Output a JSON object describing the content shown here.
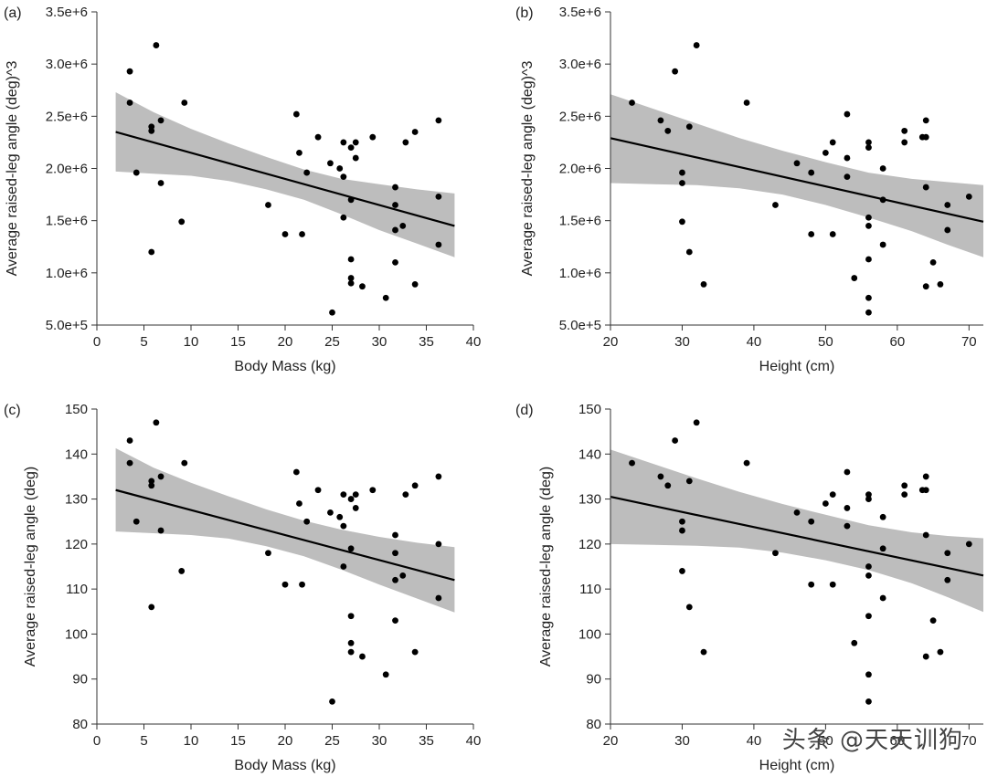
{
  "watermark": "头条 @天天训狗",
  "chart_data": [
    {
      "type": "scatter",
      "panel_label": "(a)",
      "xlabel": "Body Mass (kg)",
      "ylabel": "Average raised-leg angle (deg)^3",
      "xlim": [
        0,
        40
      ],
      "ylim": [
        500000,
        3500000
      ],
      "xticks": [
        0,
        5,
        10,
        15,
        20,
        25,
        30,
        35,
        40
      ],
      "xtick_labels": [
        "0",
        "5",
        "10",
        "15",
        "20",
        "25",
        "30",
        "35",
        "40"
      ],
      "yticks": [
        500000,
        1000000,
        1500000,
        2000000,
        2500000,
        3000000,
        3500000
      ],
      "ytick_labels": [
        "5.0e+5",
        "1.0e+6",
        "1.5e+6",
        "2.0e+6",
        "2.5e+6",
        "3.0e+6",
        "3.5e+6"
      ],
      "points": [
        [
          3.5,
          2930000
        ],
        [
          3.5,
          2630000
        ],
        [
          4.2,
          1960000
        ],
        [
          5.8,
          2400000
        ],
        [
          5.8,
          2360000
        ],
        [
          5.8,
          1200000
        ],
        [
          6.3,
          3180000
        ],
        [
          6.8,
          2460000
        ],
        [
          6.8,
          1860000
        ],
        [
          9,
          1490000
        ],
        [
          9.3,
          2630000
        ],
        [
          18.2,
          1650000
        ],
        [
          20,
          1370000
        ],
        [
          21.2,
          2520000
        ],
        [
          21.5,
          2150000
        ],
        [
          21.8,
          1370000
        ],
        [
          22.3,
          1960000
        ],
        [
          23.5,
          2300000
        ],
        [
          24.8,
          2050000
        ],
        [
          25,
          620000
        ],
        [
          25.8,
          2000000
        ],
        [
          26.2,
          2250000
        ],
        [
          26.2,
          1920000
        ],
        [
          26.2,
          1530000
        ],
        [
          27,
          2200000
        ],
        [
          27,
          1700000
        ],
        [
          27,
          1130000
        ],
        [
          27,
          950000
        ],
        [
          27,
          900000
        ],
        [
          27.5,
          2250000
        ],
        [
          27.5,
          2100000
        ],
        [
          28.2,
          870000
        ],
        [
          29.3,
          2300000
        ],
        [
          30.7,
          760000
        ],
        [
          31.7,
          1820000
        ],
        [
          31.7,
          1650000
        ],
        [
          31.7,
          1410000
        ],
        [
          31.7,
          1100000
        ],
        [
          32.5,
          1450000
        ],
        [
          32.8,
          2250000
        ],
        [
          33.8,
          2350000
        ],
        [
          33.8,
          890000
        ],
        [
          36.3,
          2460000
        ],
        [
          36.3,
          1730000
        ],
        [
          36.3,
          1270000
        ]
      ],
      "fit_line": {
        "x": [
          2,
          38
        ],
        "y": [
          2350000,
          1450000
        ]
      },
      "confidence_band": {
        "x": [
          2,
          6,
          10,
          14,
          18,
          22,
          26,
          30,
          34,
          38
        ],
        "upper": [
          2730000,
          2540000,
          2380000,
          2240000,
          2110000,
          1990000,
          1900000,
          1850000,
          1800000,
          1760000
        ],
        "lower": [
          1970000,
          1950000,
          1930000,
          1880000,
          1800000,
          1700000,
          1560000,
          1410000,
          1280000,
          1150000
        ]
      }
    },
    {
      "type": "scatter",
      "panel_label": "(b)",
      "xlabel": "Height (cm)",
      "ylabel": "Average raised-leg angle (deg)^3",
      "xlim": [
        20,
        72
      ],
      "ylim": [
        500000,
        3500000
      ],
      "xticks": [
        20,
        30,
        40,
        50,
        60,
        70
      ],
      "xtick_labels": [
        "20",
        "30",
        "40",
        "50",
        "60",
        "70"
      ],
      "yticks": [
        500000,
        1000000,
        1500000,
        2000000,
        2500000,
        3000000,
        3500000
      ],
      "ytick_labels": [
        "5.0e+5",
        "1.0e+6",
        "1.5e+6",
        "2.0e+6",
        "2.5e+6",
        "3.0e+6",
        "3.5e+6"
      ],
      "points": [
        [
          23,
          2630000
        ],
        [
          27,
          2460000
        ],
        [
          28,
          2360000
        ],
        [
          29,
          2930000
        ],
        [
          30,
          1960000
        ],
        [
          30,
          1860000
        ],
        [
          30,
          1490000
        ],
        [
          31,
          2400000
        ],
        [
          31,
          1200000
        ],
        [
          32,
          3180000
        ],
        [
          33,
          890000
        ],
        [
          39,
          2630000
        ],
        [
          43,
          1650000
        ],
        [
          46,
          2050000
        ],
        [
          48,
          1960000
        ],
        [
          48,
          1370000
        ],
        [
          50,
          2150000
        ],
        [
          51,
          2250000
        ],
        [
          51,
          1370000
        ],
        [
          53,
          2520000
        ],
        [
          53,
          2100000
        ],
        [
          53,
          1920000
        ],
        [
          54,
          950000
        ],
        [
          56,
          2250000
        ],
        [
          56,
          2200000
        ],
        [
          56,
          1530000
        ],
        [
          56,
          1450000
        ],
        [
          56,
          1130000
        ],
        [
          56,
          760000
        ],
        [
          56,
          620000
        ],
        [
          58,
          2000000
        ],
        [
          58,
          1700000
        ],
        [
          58,
          1270000
        ],
        [
          61,
          2360000
        ],
        [
          61,
          2250000
        ],
        [
          63.5,
          2300000
        ],
        [
          64,
          2460000
        ],
        [
          64,
          2300000
        ],
        [
          64,
          1820000
        ],
        [
          64,
          870000
        ],
        [
          65,
          1100000
        ],
        [
          66,
          890000
        ],
        [
          67,
          1650000
        ],
        [
          67,
          1410000
        ],
        [
          70,
          1730000
        ]
      ],
      "fit_line": {
        "x": [
          20,
          72
        ],
        "y": [
          2290000,
          1490000
        ]
      },
      "confidence_band": {
        "x": [
          20,
          26,
          32,
          38,
          44,
          50,
          56,
          62,
          67,
          72
        ],
        "upper": [
          2710000,
          2570000,
          2430000,
          2290000,
          2170000,
          2060000,
          1960000,
          1900000,
          1870000,
          1840000
        ],
        "lower": [
          1860000,
          1850000,
          1840000,
          1810000,
          1750000,
          1650000,
          1530000,
          1400000,
          1270000,
          1150000
        ]
      }
    },
    {
      "type": "scatter",
      "panel_label": "(c)",
      "xlabel": "Body Mass (kg)",
      "ylabel": "Average raised-leg angle (deg)",
      "xlim": [
        0,
        40
      ],
      "ylim": [
        80,
        150
      ],
      "xticks": [
        0,
        5,
        10,
        15,
        20,
        25,
        30,
        35,
        40
      ],
      "xtick_labels": [
        "0",
        "5",
        "10",
        "15",
        "20",
        "25",
        "30",
        "35",
        "40"
      ],
      "yticks": [
        80,
        90,
        100,
        110,
        120,
        130,
        140,
        150
      ],
      "ytick_labels": [
        "80",
        "90",
        "100",
        "110",
        "120",
        "130",
        "140",
        "150"
      ],
      "points": [
        [
          3.5,
          143
        ],
        [
          3.5,
          138
        ],
        [
          4.2,
          125
        ],
        [
          5.8,
          134
        ],
        [
          5.8,
          133
        ],
        [
          5.8,
          106
        ],
        [
          6.3,
          147
        ],
        [
          6.8,
          135
        ],
        [
          6.8,
          123
        ],
        [
          9,
          114
        ],
        [
          9.3,
          138
        ],
        [
          18.2,
          118
        ],
        [
          20,
          111
        ],
        [
          21.2,
          136
        ],
        [
          21.5,
          129
        ],
        [
          21.8,
          111
        ],
        [
          22.3,
          125
        ],
        [
          23.5,
          132
        ],
        [
          24.8,
          127
        ],
        [
          25,
          85
        ],
        [
          25.8,
          126
        ],
        [
          26.2,
          131
        ],
        [
          26.2,
          124
        ],
        [
          26.2,
          115
        ],
        [
          27,
          130
        ],
        [
          27,
          119
        ],
        [
          27,
          104
        ],
        [
          27,
          98
        ],
        [
          27,
          96
        ],
        [
          27.5,
          131
        ],
        [
          27.5,
          128
        ],
        [
          28.2,
          95
        ],
        [
          29.3,
          132
        ],
        [
          30.7,
          91
        ],
        [
          31.7,
          122
        ],
        [
          31.7,
          118
        ],
        [
          31.7,
          112
        ],
        [
          31.7,
          103
        ],
        [
          32.5,
          113
        ],
        [
          32.8,
          131
        ],
        [
          33.8,
          133
        ],
        [
          33.8,
          96
        ],
        [
          36.3,
          135
        ],
        [
          36.3,
          120
        ],
        [
          36.3,
          108
        ]
      ],
      "fit_line": {
        "x": [
          2,
          38
        ],
        "y": [
          132,
          112
        ]
      },
      "confidence_band": {
        "x": [
          2,
          6,
          10,
          14,
          18,
          22,
          26,
          30,
          34,
          38
        ],
        "upper": [
          141.3,
          137,
          133.6,
          130.6,
          127.7,
          125.2,
          123.2,
          121.6,
          120.3,
          119.3
        ],
        "lower": [
          122.8,
          122.4,
          122,
          121.2,
          119.5,
          117.3,
          114.3,
          111,
          107.9,
          104.8
        ]
      }
    },
    {
      "type": "scatter",
      "panel_label": "(d)",
      "xlabel": "Height (cm)",
      "ylabel": "Average raised-leg angle (deg)",
      "xlim": [
        20,
        72
      ],
      "ylim": [
        80,
        150
      ],
      "xticks": [
        20,
        30,
        40,
        50,
        60,
        70
      ],
      "xtick_labels": [
        "20",
        "30",
        "40",
        "50",
        "60",
        "70"
      ],
      "yticks": [
        80,
        90,
        100,
        110,
        120,
        130,
        140,
        150
      ],
      "ytick_labels": [
        "80",
        "90",
        "100",
        "110",
        "120",
        "130",
        "140",
        "150"
      ],
      "points": [
        [
          23,
          138
        ],
        [
          27,
          135
        ],
        [
          28,
          133
        ],
        [
          29,
          143
        ],
        [
          30,
          125
        ],
        [
          30,
          123
        ],
        [
          30,
          114
        ],
        [
          31,
          134
        ],
        [
          31,
          106
        ],
        [
          32,
          147
        ],
        [
          33,
          96
        ],
        [
          39,
          138
        ],
        [
          43,
          118
        ],
        [
          46,
          127
        ],
        [
          48,
          125
        ],
        [
          48,
          111
        ],
        [
          50,
          129
        ],
        [
          51,
          131
        ],
        [
          51,
          111
        ],
        [
          53,
          136
        ],
        [
          53,
          128
        ],
        [
          53,
          124
        ],
        [
          54,
          98
        ],
        [
          56,
          131
        ],
        [
          56,
          130
        ],
        [
          56,
          115
        ],
        [
          56,
          113
        ],
        [
          56,
          104
        ],
        [
          56,
          91
        ],
        [
          56,
          85
        ],
        [
          58,
          126
        ],
        [
          58,
          119
        ],
        [
          58,
          108
        ],
        [
          61,
          133
        ],
        [
          61,
          131
        ],
        [
          63.5,
          132
        ],
        [
          64,
          135
        ],
        [
          64,
          132
        ],
        [
          64,
          122
        ],
        [
          64,
          95
        ],
        [
          65,
          103
        ],
        [
          66,
          96
        ],
        [
          67,
          118
        ],
        [
          67,
          112
        ],
        [
          70,
          120
        ]
      ],
      "fit_line": {
        "x": [
          20,
          72
        ],
        "y": [
          130.5,
          113
        ]
      },
      "confidence_band": {
        "x": [
          20,
          26,
          32,
          38,
          44,
          50,
          56,
          62,
          67,
          72
        ],
        "upper": [
          141,
          137.8,
          134.6,
          131.6,
          128.9,
          126.5,
          124.2,
          122.6,
          121.8,
          121.3
        ],
        "lower": [
          120,
          119.8,
          119.6,
          119.2,
          118.1,
          116.4,
          114.2,
          111.3,
          108.2,
          104.9
        ]
      }
    }
  ]
}
